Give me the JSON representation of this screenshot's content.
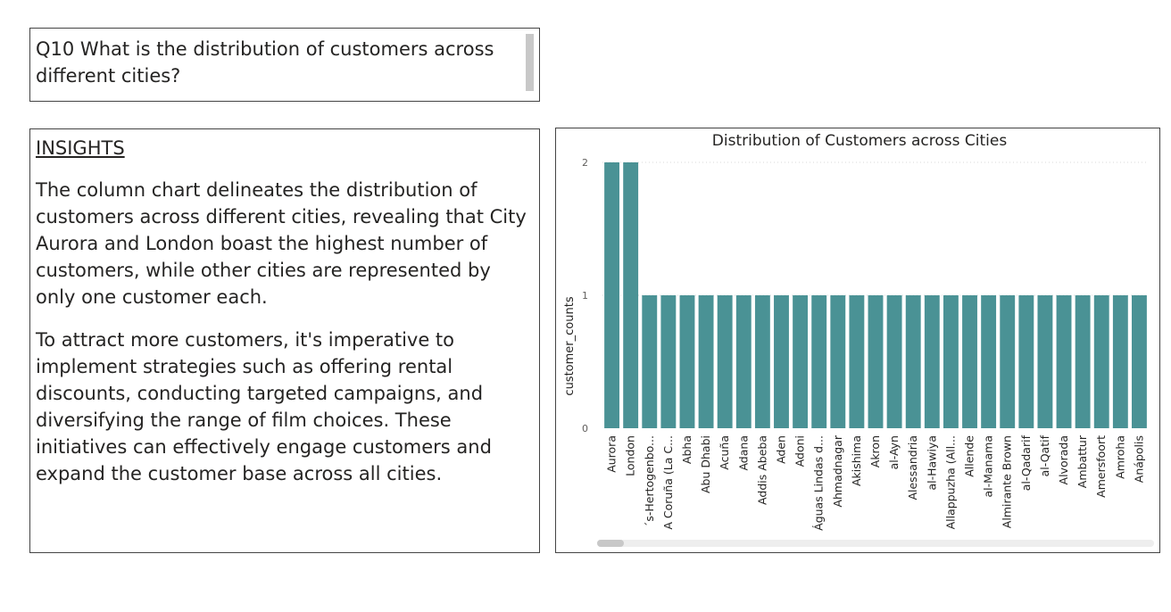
{
  "question": {
    "text": "Q10 What is the distribution of customers across different cities?"
  },
  "insights": {
    "title": "INSIGHTS",
    "paragraphs": [
      "The column chart delineates the distribution of customers across different cities, revealing that City Aurora and London boast the highest number of customers, while other cities are represented by only one customer each.",
      "To attract more customers, it's imperative to implement strategies such as offering rental discounts, conducting targeted campaigns, and diversifying the range of film choices. These initiatives can effectively engage customers and expand the customer base across all cities."
    ]
  },
  "colors": {
    "bar": "#4a9295",
    "scrollbar_thumb": "#c8c8c8",
    "scrollbar_track": "#eeeeee"
  },
  "chart_data": {
    "type": "bar",
    "title": "Distribution of Customers across Cities",
    "xlabel": "",
    "ylabel": "customer_counts",
    "ylim": [
      0,
      2
    ],
    "yticks": [
      "0",
      "1",
      "2"
    ],
    "grid": true,
    "categories": [
      "Aurora",
      "London",
      "´s-Hertogenbo...",
      "A Coruña (La C...",
      "Abha",
      "Abu Dhabi",
      "Acuña",
      "Adana",
      "Addis Abeba",
      "Aden",
      "Adoni",
      "Águas Lindas d...",
      "Ahmadnagar",
      "Akishima",
      "Akron",
      "al-Ayn",
      "Alessandria",
      "al-Hawiya",
      "Allappuzha (All...",
      "Allende",
      "al-Manama",
      "Almirante Brown",
      "al-Qadarif",
      "al-Qatif",
      "Alvorada",
      "Ambattur",
      "Amersfoort",
      "Amroha",
      "Anápolis"
    ],
    "values": [
      2,
      2,
      1,
      1,
      1,
      1,
      1,
      1,
      1,
      1,
      1,
      1,
      1,
      1,
      1,
      1,
      1,
      1,
      1,
      1,
      1,
      1,
      1,
      1,
      1,
      1,
      1,
      1,
      1
    ]
  }
}
